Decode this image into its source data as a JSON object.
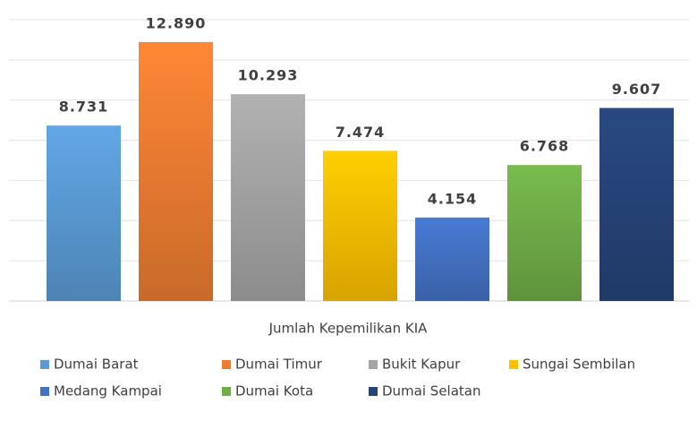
{
  "chart_data": {
    "type": "bar",
    "categories": [
      "Jumlah Kepemilikan KIA"
    ],
    "series": [
      {
        "name": "Dumai Barat",
        "color": "#5b9bd5",
        "values": [
          8731
        ],
        "value_labels": [
          "8.731"
        ]
      },
      {
        "name": "Dumai Timur",
        "color": "#ed7d31",
        "values": [
          12890
        ],
        "value_labels": [
          "12.890"
        ]
      },
      {
        "name": "Bukit Kapur",
        "color": "#a5a5a5",
        "values": [
          10293
        ],
        "value_labels": [
          "10.293"
        ]
      },
      {
        "name": "Sungai Sembilan",
        "color": "#ffc000",
        "values": [
          7474
        ],
        "value_labels": [
          "7.474"
        ]
      },
      {
        "name": "Medang Kampai",
        "color": "#4472c4",
        "values": [
          4154
        ],
        "value_labels": [
          "4.154"
        ]
      },
      {
        "name": "Dumai Kota",
        "color": "#70ad47",
        "values": [
          6768
        ],
        "value_labels": [
          "6.768"
        ]
      },
      {
        "name": "Dumai Selatan",
        "color": "#264478",
        "values": [
          9607
        ],
        "value_labels": [
          "9.607"
        ]
      }
    ],
    "ylim": [
      0,
      14000
    ],
    "yticks": [
      0,
      2000,
      4000,
      6000,
      8000,
      10000,
      12000,
      14000
    ],
    "grid": true
  }
}
